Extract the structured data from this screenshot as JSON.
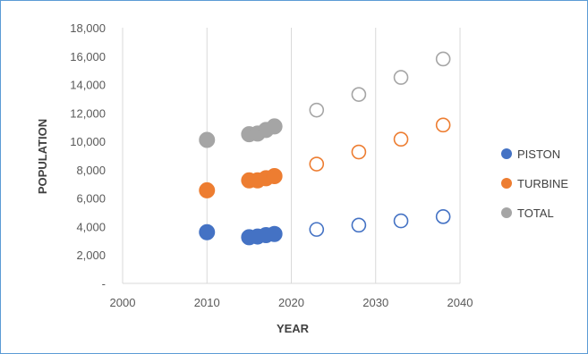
{
  "chart_data": {
    "type": "scatter",
    "title": "",
    "xlabel": "YEAR",
    "ylabel": "POPULATION",
    "xlim": [
      2000,
      2040
    ],
    "ylim": [
      0,
      18000
    ],
    "xticks": [
      "2000",
      "2010",
      "2020",
      "2030",
      "2040"
    ],
    "yticks": [
      "-",
      "2,000",
      "4,000",
      "6,000",
      "8,000",
      "10,000",
      "12,000",
      "14,000",
      "16,000",
      "18,000"
    ],
    "grid": "vertical",
    "legend_position": "right",
    "series": [
      {
        "name": "PISTON",
        "color": "#4472c4",
        "actual": {
          "x": [
            2010,
            2015,
            2016,
            2017,
            2018
          ],
          "y": [
            3600,
            3250,
            3300,
            3400,
            3480
          ]
        },
        "forecast": {
          "x": [
            2023,
            2028,
            2033,
            2038
          ],
          "y": [
            3800,
            4100,
            4400,
            4700
          ]
        }
      },
      {
        "name": "TURBINE",
        "color": "#ed7d31",
        "actual": {
          "x": [
            2010,
            2015,
            2016,
            2017,
            2018
          ],
          "y": [
            6550,
            7250,
            7250,
            7400,
            7550
          ]
        },
        "forecast": {
          "x": [
            2023,
            2028,
            2033,
            2038
          ],
          "y": [
            8400,
            9250,
            10150,
            11150
          ]
        }
      },
      {
        "name": "TOTAL",
        "color": "#a5a5a5",
        "actual": {
          "x": [
            2010,
            2015,
            2016,
            2017,
            2018
          ],
          "y": [
            10100,
            10500,
            10550,
            10800,
            11050
          ]
        },
        "forecast": {
          "x": [
            2023,
            2028,
            2033,
            2038
          ],
          "y": [
            12200,
            13300,
            14500,
            15800
          ]
        }
      }
    ]
  }
}
